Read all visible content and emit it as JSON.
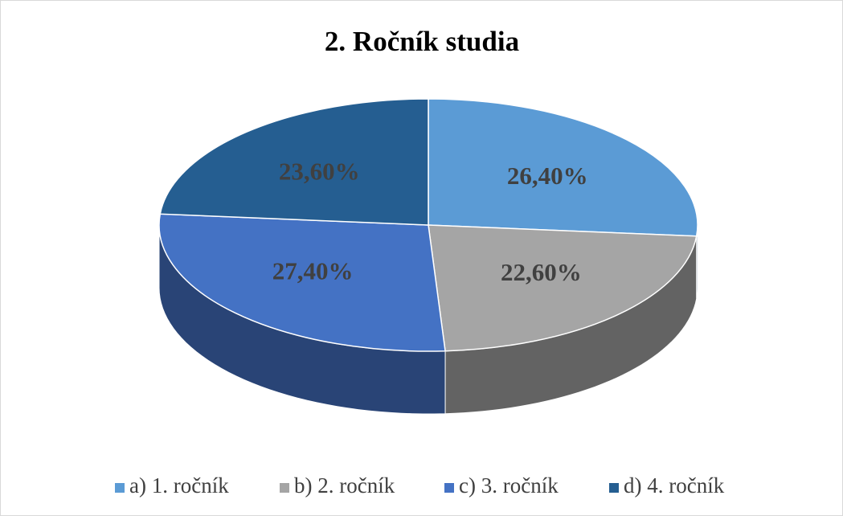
{
  "chart_data": {
    "type": "pie",
    "title": "2. Ročník studia",
    "categories": [
      "a) 1. ročník",
      "b) 2. ročník",
      "c) 3. ročník",
      "d) 4. ročník"
    ],
    "values": [
      26.4,
      22.6,
      27.4,
      23.6
    ],
    "value_labels": [
      "26,40%",
      "22,60%",
      "27,40%",
      "23,60%"
    ],
    "colors": [
      "#5b9bd5",
      "#a5a5a5",
      "#4472c4",
      "#255e91"
    ],
    "legend": "bottom"
  }
}
